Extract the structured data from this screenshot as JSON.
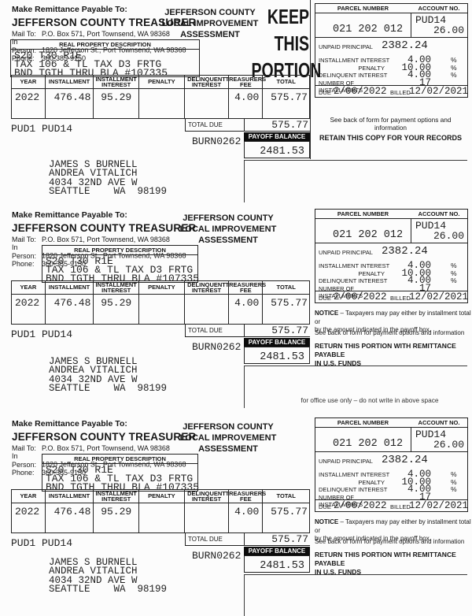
{
  "portion": {
    "payable_heading": "Make Remittance Payable To:",
    "payee_name": "JEFFERSON COUNTY TREASURER",
    "contact": {
      "mail_label": "Mail To:",
      "mail_value": "P.O. Box 571, Port Townsend, WA 98368",
      "in_person_label": "In Person:",
      "in_person_value": "1820 Jefferson St., Port Townsend, WA 98368",
      "phone_label": "Phone:",
      "phone_value": "360-385-9150"
    },
    "agency_title": [
      "JEFFERSON COUNTY",
      "LOCAL IMPROVEMENT",
      "ASSESSMENT"
    ],
    "keep_portion": [
      "KEEP",
      "THIS",
      "PORTION"
    ],
    "property": {
      "heading": "REAL PROPERTY DESCRIPTION",
      "lines": [
        "S20 T30 R1E",
        "TAX 106 & TL TAX D3 FRTG",
        "BND TGTH THRU BLA #107335"
      ]
    },
    "table": {
      "headers": [
        "YEAR",
        "INSTALLMENT",
        "INSTALLMENT INTEREST",
        "PENALTY",
        "DELINQUENT INTEREST",
        "TREASURERS FEE",
        "TOTAL"
      ],
      "row": {
        "year": "2022",
        "installment": "476.48",
        "installment_interest": "95.29",
        "penalty": "",
        "delinquent_interest": "",
        "treasurers_fee": "4.00",
        "total": "575.77"
      }
    },
    "account_codes": "PUD1 PUD14",
    "total_due_label": "TOTAL DUE",
    "total_due_value": "575.77",
    "batch_code": "BURN0262",
    "payoff_label": "PAYOFF BALANCE",
    "payoff_value": "2481.53",
    "parcel_box": {
      "parcel_label": "PARCEL NUMBER",
      "account_label": "ACCOUNT NO.",
      "parcel_number": "021 202 012",
      "account_no_line1": "PUD14",
      "account_no_line2": "26.00",
      "unpaid_principal_label": "UNPAID PRINCIPAL",
      "unpaid_principal": "2382.24",
      "rates": [
        {
          "label": "INSTALLMENT INTEREST",
          "value": "4.00",
          "unit": "%"
        },
        {
          "label": "PENALTY",
          "value": "10.00",
          "unit": "%"
        },
        {
          "label": "DELINQUENT INTEREST",
          "value": "4.00",
          "unit": "%"
        },
        {
          "label": "NUMBER OF INSTALLMENTS",
          "value": "17",
          "unit": ""
        }
      ],
      "due_label": "DUE",
      "due_date": "2/06/2022",
      "billed_label": "BILLED",
      "billed_date": "12/02/2021"
    },
    "notes": {
      "see_back": "See back of form for payment options and information",
      "retain": "RETAIN THIS COPY FOR YOUR RECORDS",
      "notice_label": "NOTICE",
      "notice_rest": " – Taxpayers may pay either by installment total or",
      "notice_line2": "by the amount indicated in the payoff box.",
      "return_line1": "RETURN THIS PORTION WITH REMITTANCE PAYABLE",
      "return_line2": "IN U.S. FUNDS"
    },
    "recipient": [
      "JAMES S BURNELL",
      "ANDREA VITALICH",
      "4034 32ND AVE W",
      "SEATTLE    WA  98199"
    ]
  },
  "office_use_note": "for office use only – do not write in above space"
}
